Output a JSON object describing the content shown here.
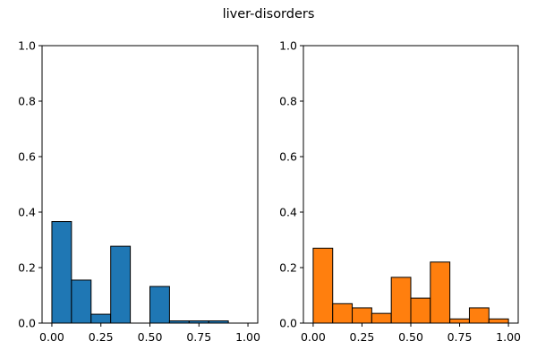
{
  "title": "liver-disorders",
  "chart_data": [
    {
      "type": "bar",
      "bin_edges": [
        0.0,
        0.1,
        0.2,
        0.3,
        0.4,
        0.5,
        0.6,
        0.7,
        0.8,
        0.9,
        1.0
      ],
      "values": [
        0.366,
        0.155,
        0.032,
        0.277,
        0.0,
        0.132,
        0.008,
        0.008,
        0.008,
        0.0
      ],
      "xlim": [
        -0.05,
        1.05
      ],
      "ylim": [
        0,
        1.0
      ],
      "xticks": [
        "0.00",
        "0.25",
        "0.50",
        "0.75",
        "1.00"
      ],
      "yticks": [
        "0.0",
        "0.2",
        "0.4",
        "0.6",
        "0.8",
        "1.0"
      ],
      "color": "#1f77b4",
      "edge_color": "#000000",
      "grid": false
    },
    {
      "type": "bar",
      "bin_edges": [
        0.0,
        0.1,
        0.2,
        0.3,
        0.4,
        0.5,
        0.6,
        0.7,
        0.8,
        0.9,
        1.0
      ],
      "values": [
        0.27,
        0.07,
        0.055,
        0.035,
        0.165,
        0.09,
        0.22,
        0.015,
        0.055,
        0.015
      ],
      "xlim": [
        -0.05,
        1.05
      ],
      "ylim": [
        0,
        1.0
      ],
      "xticks": [
        "0.00",
        "0.25",
        "0.50",
        "0.75",
        "1.00"
      ],
      "yticks": [
        "0.0",
        "0.2",
        "0.4",
        "0.6",
        "0.8",
        "1.0"
      ],
      "color": "#ff7f0e",
      "edge_color": "#000000",
      "grid": false
    }
  ]
}
